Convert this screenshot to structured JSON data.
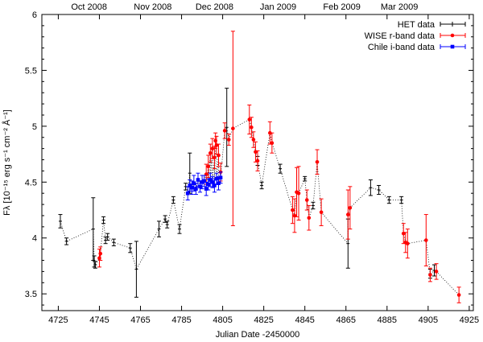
{
  "chart_data": {
    "type": "scatter",
    "xlabel": "Julian Date -2450000",
    "ylabel": "Fλ [10⁻¹⁵ erg s⁻¹ cm⁻² Å⁻¹]",
    "xlim": [
      4717,
      4927
    ],
    "ylim": [
      3.35,
      6.0
    ],
    "xticks": [
      "4725",
      "4745",
      "4765",
      "4785",
      "4805",
      "4825",
      "4845",
      "4865",
      "4885",
      "4905",
      "4925"
    ],
    "yticks": [
      "3.5",
      "4",
      "4.5",
      "5",
      "5.5",
      "6"
    ],
    "top_axis": {
      "labels": [
        "Oct 2008",
        "Nov 2008",
        "Dec 2008",
        "Jan 2009",
        "Feb 2009",
        "Mar 2009"
      ],
      "positions_jd": [
        4740,
        4771,
        4801,
        4832,
        4863,
        4891
      ]
    },
    "legend_position": "top-right",
    "connector_line": "dotted",
    "series": [
      {
        "name": "HET data",
        "color": "#000000",
        "marker": "plus",
        "points": [
          [
            4726,
            4.15,
            0.06
          ],
          [
            4729,
            3.97,
            0.03
          ],
          [
            4742,
            4.08,
            0.28
          ],
          [
            4742.5,
            3.79,
            0.05
          ],
          [
            4743,
            3.76,
            0.03
          ],
          [
            4747,
            4.16,
            0.03
          ],
          [
            4748,
            3.98,
            0.03
          ],
          [
            4749,
            4.01,
            0.03
          ],
          [
            4752,
            3.96,
            0.03
          ],
          [
            4760,
            3.91,
            0.04
          ],
          [
            4763,
            3.72,
            0.25
          ],
          [
            4774,
            4.08,
            0.07
          ],
          [
            4777,
            4.17,
            0.03
          ],
          [
            4778,
            4.12,
            0.03
          ],
          [
            4781,
            4.34,
            0.03
          ],
          [
            4784,
            4.08,
            0.04
          ],
          [
            4787,
            4.46,
            0.03
          ],
          [
            4789,
            4.58,
            0.18
          ],
          [
            4807,
            4.99,
            0.35
          ],
          [
            4822,
            4.69,
            0.04
          ],
          [
            4824,
            4.47,
            0.03
          ],
          [
            4833,
            4.62,
            0.04
          ],
          [
            4845,
            4.53,
            0.02
          ],
          [
            4849,
            4.29,
            0.03
          ],
          [
            4866,
            3.95,
            0.22
          ],
          [
            4877,
            4.45,
            0.07
          ],
          [
            4881,
            4.43,
            0.04
          ],
          [
            4886,
            4.34,
            0.03
          ],
          [
            4892,
            4.34,
            0.03
          ],
          [
            4906,
            3.68,
            0.04
          ],
          [
            4908,
            3.71,
            0.05
          ]
        ]
      },
      {
        "name": "WISE r-band data",
        "color": "#ff0000",
        "marker": "dot",
        "points": [
          [
            4745,
            3.82,
            0.08
          ],
          [
            4745.5,
            3.86,
            0.06
          ],
          [
            4797,
            4.57,
            0.09
          ],
          [
            4798,
            4.64,
            0.1
          ],
          [
            4799,
            4.76,
            0.08
          ],
          [
            4800,
            4.8,
            0.09
          ],
          [
            4801,
            4.72,
            0.1
          ],
          [
            4801.5,
            4.87,
            0.07
          ],
          [
            4802,
            4.83,
            0.08
          ],
          [
            4803,
            4.74,
            0.1
          ],
          [
            4804,
            4.59,
            0.08
          ],
          [
            4806,
            4.96,
            0.07
          ],
          [
            4808,
            4.88,
            0.05
          ],
          [
            4810,
            4.98,
            0.87
          ],
          [
            4818,
            5.06,
            0.13
          ],
          [
            4819,
            4.99,
            0.09
          ],
          [
            4820,
            4.88,
            0.07
          ],
          [
            4821,
            4.77,
            0.09
          ],
          [
            4822,
            4.69,
            0.09
          ],
          [
            4828,
            4.94,
            0.1
          ],
          [
            4829,
            4.85,
            0.09
          ],
          [
            4839,
            4.25,
            0.12
          ],
          [
            4840,
            4.2,
            0.15
          ],
          [
            4841,
            4.41,
            0.22
          ],
          [
            4842,
            4.4,
            0.24
          ],
          [
            4846,
            4.34,
            0.09
          ],
          [
            4847,
            4.18,
            0.11
          ],
          [
            4851,
            4.68,
            0.11
          ],
          [
            4853,
            4.23,
            0.12
          ],
          [
            4866,
            4.21,
            0.22
          ],
          [
            4867,
            4.27,
            0.19
          ],
          [
            4893,
            4.04,
            0.09
          ],
          [
            4894,
            3.96,
            0.09
          ],
          [
            4895,
            3.95,
            0.13
          ],
          [
            4904,
            3.98,
            0.23
          ],
          [
            4906,
            3.67,
            0.06
          ],
          [
            4909,
            3.7,
            0.07
          ],
          [
            4920,
            3.49,
            0.07
          ]
        ]
      },
      {
        "name": "Chile i-band data",
        "color": "#0000ff",
        "marker": "square",
        "points": [
          [
            4788,
            4.4,
            0.06
          ],
          [
            4789,
            4.47,
            0.05
          ],
          [
            4790,
            4.45,
            0.06
          ],
          [
            4791,
            4.49,
            0.07
          ],
          [
            4792,
            4.44,
            0.05
          ],
          [
            4793,
            4.52,
            0.06
          ],
          [
            4794,
            4.46,
            0.05
          ],
          [
            4795,
            4.5,
            0.06
          ],
          [
            4796,
            4.51,
            0.05
          ],
          [
            4797,
            4.44,
            0.06
          ],
          [
            4798,
            4.48,
            0.05
          ],
          [
            4799,
            4.52,
            0.06
          ],
          [
            4800,
            4.5,
            0.05
          ],
          [
            4801,
            4.47,
            0.06
          ],
          [
            4802,
            4.53,
            0.05
          ],
          [
            4803,
            4.49,
            0.06
          ],
          [
            4804,
            4.54,
            0.05
          ]
        ]
      }
    ]
  }
}
